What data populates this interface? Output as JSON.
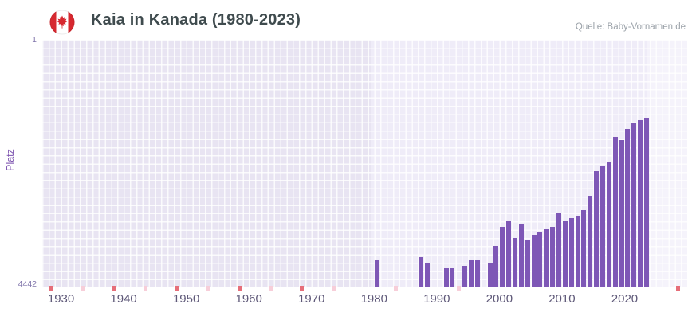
{
  "header": {
    "title": "Kaia in Kanada (1980-2023)",
    "source": "Quelle: Baby-Vornamen.de",
    "flag_icon": "canada-flag"
  },
  "chart_data": {
    "type": "bar",
    "title": "Kaia in Kanada (1980-2023)",
    "xlabel": "",
    "ylabel": "Platz",
    "y_axis": {
      "top_label": "1",
      "bottom_label": "4442",
      "min": 1,
      "max": 4442,
      "inverted": true
    },
    "x_domain": [
      1927,
      2030
    ],
    "xticks": [
      1930,
      1940,
      1950,
      1960,
      1970,
      1980,
      1990,
      2000,
      2010,
      2020
    ],
    "grid": true,
    "legend": false,
    "series": [
      {
        "year": 1980,
        "rank": 3950
      },
      {
        "year": 1987,
        "rank": 3900
      },
      {
        "year": 1988,
        "rank": 4000
      },
      {
        "year": 1991,
        "rank": 4100
      },
      {
        "year": 1992,
        "rank": 4100
      },
      {
        "year": 1994,
        "rank": 4050
      },
      {
        "year": 1995,
        "rank": 3950
      },
      {
        "year": 1996,
        "rank": 3950
      },
      {
        "year": 1998,
        "rank": 4000
      },
      {
        "year": 1999,
        "rank": 3700
      },
      {
        "year": 2000,
        "rank": 3350
      },
      {
        "year": 2001,
        "rank": 3250
      },
      {
        "year": 2002,
        "rank": 3550
      },
      {
        "year": 2003,
        "rank": 3300
      },
      {
        "year": 2004,
        "rank": 3600
      },
      {
        "year": 2005,
        "rank": 3500
      },
      {
        "year": 2006,
        "rank": 3450
      },
      {
        "year": 2007,
        "rank": 3400
      },
      {
        "year": 2008,
        "rank": 3350
      },
      {
        "year": 2009,
        "rank": 3100
      },
      {
        "year": 2010,
        "rank": 3250
      },
      {
        "year": 2011,
        "rank": 3200
      },
      {
        "year": 2012,
        "rank": 3150
      },
      {
        "year": 2013,
        "rank": 3050
      },
      {
        "year": 2014,
        "rank": 2800
      },
      {
        "year": 2015,
        "rank": 2350
      },
      {
        "year": 2016,
        "rank": 2250
      },
      {
        "year": 2017,
        "rank": 2200
      },
      {
        "year": 2018,
        "rank": 1750
      },
      {
        "year": 2019,
        "rank": 1800
      },
      {
        "year": 2020,
        "rank": 1600
      },
      {
        "year": 2021,
        "rank": 1500
      },
      {
        "year": 2022,
        "rank": 1450
      },
      {
        "year": 2023,
        "rank": 1400
      }
    ],
    "no_data_markers": {
      "strong": [
        1928,
        1938,
        1948,
        1958,
        1968,
        2028
      ],
      "light": [
        1933,
        1943,
        1953,
        1963,
        1973,
        1983,
        1993
      ]
    },
    "plot_bands": [
      {
        "from": 1927,
        "to": 1979.5,
        "color_key": "plot_bg"
      },
      {
        "from": 1979.5,
        "to": 2023.5,
        "color_key": "band_data"
      },
      {
        "from": 2023.5,
        "to": 2030,
        "color_key": "band_future"
      }
    ],
    "colors": {
      "bar": "#7e57b6",
      "marker_strong": "#e66e79",
      "marker_light": "#f7ced9",
      "plot_bg": "#e8e4f2",
      "band_data": "#efecf8",
      "band_future": "#f5f3fb",
      "grid": "#ffffff",
      "baseline": "#3f3a55",
      "flag_red": "#d7282f"
    }
  }
}
